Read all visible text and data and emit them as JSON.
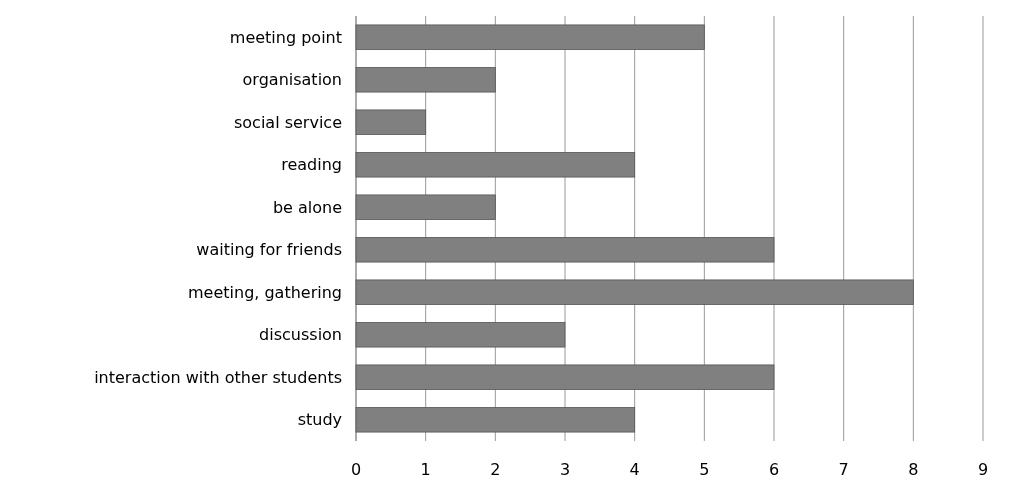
{
  "chart_data": {
    "type": "bar",
    "orientation": "horizontal",
    "categories": [
      "meeting point",
      "organisation",
      "social service",
      "reading",
      "be alone",
      "waiting for friends",
      "meeting, gathering",
      "discussion",
      "interaction with other students",
      "study"
    ],
    "values": [
      5,
      2,
      1,
      4,
      2,
      6,
      8,
      3,
      6,
      4
    ],
    "color": "#808080",
    "xlim": [
      0,
      9
    ],
    "xticks": [
      0,
      1,
      2,
      3,
      4,
      5,
      6,
      7,
      8,
      9
    ],
    "grid": "x"
  }
}
